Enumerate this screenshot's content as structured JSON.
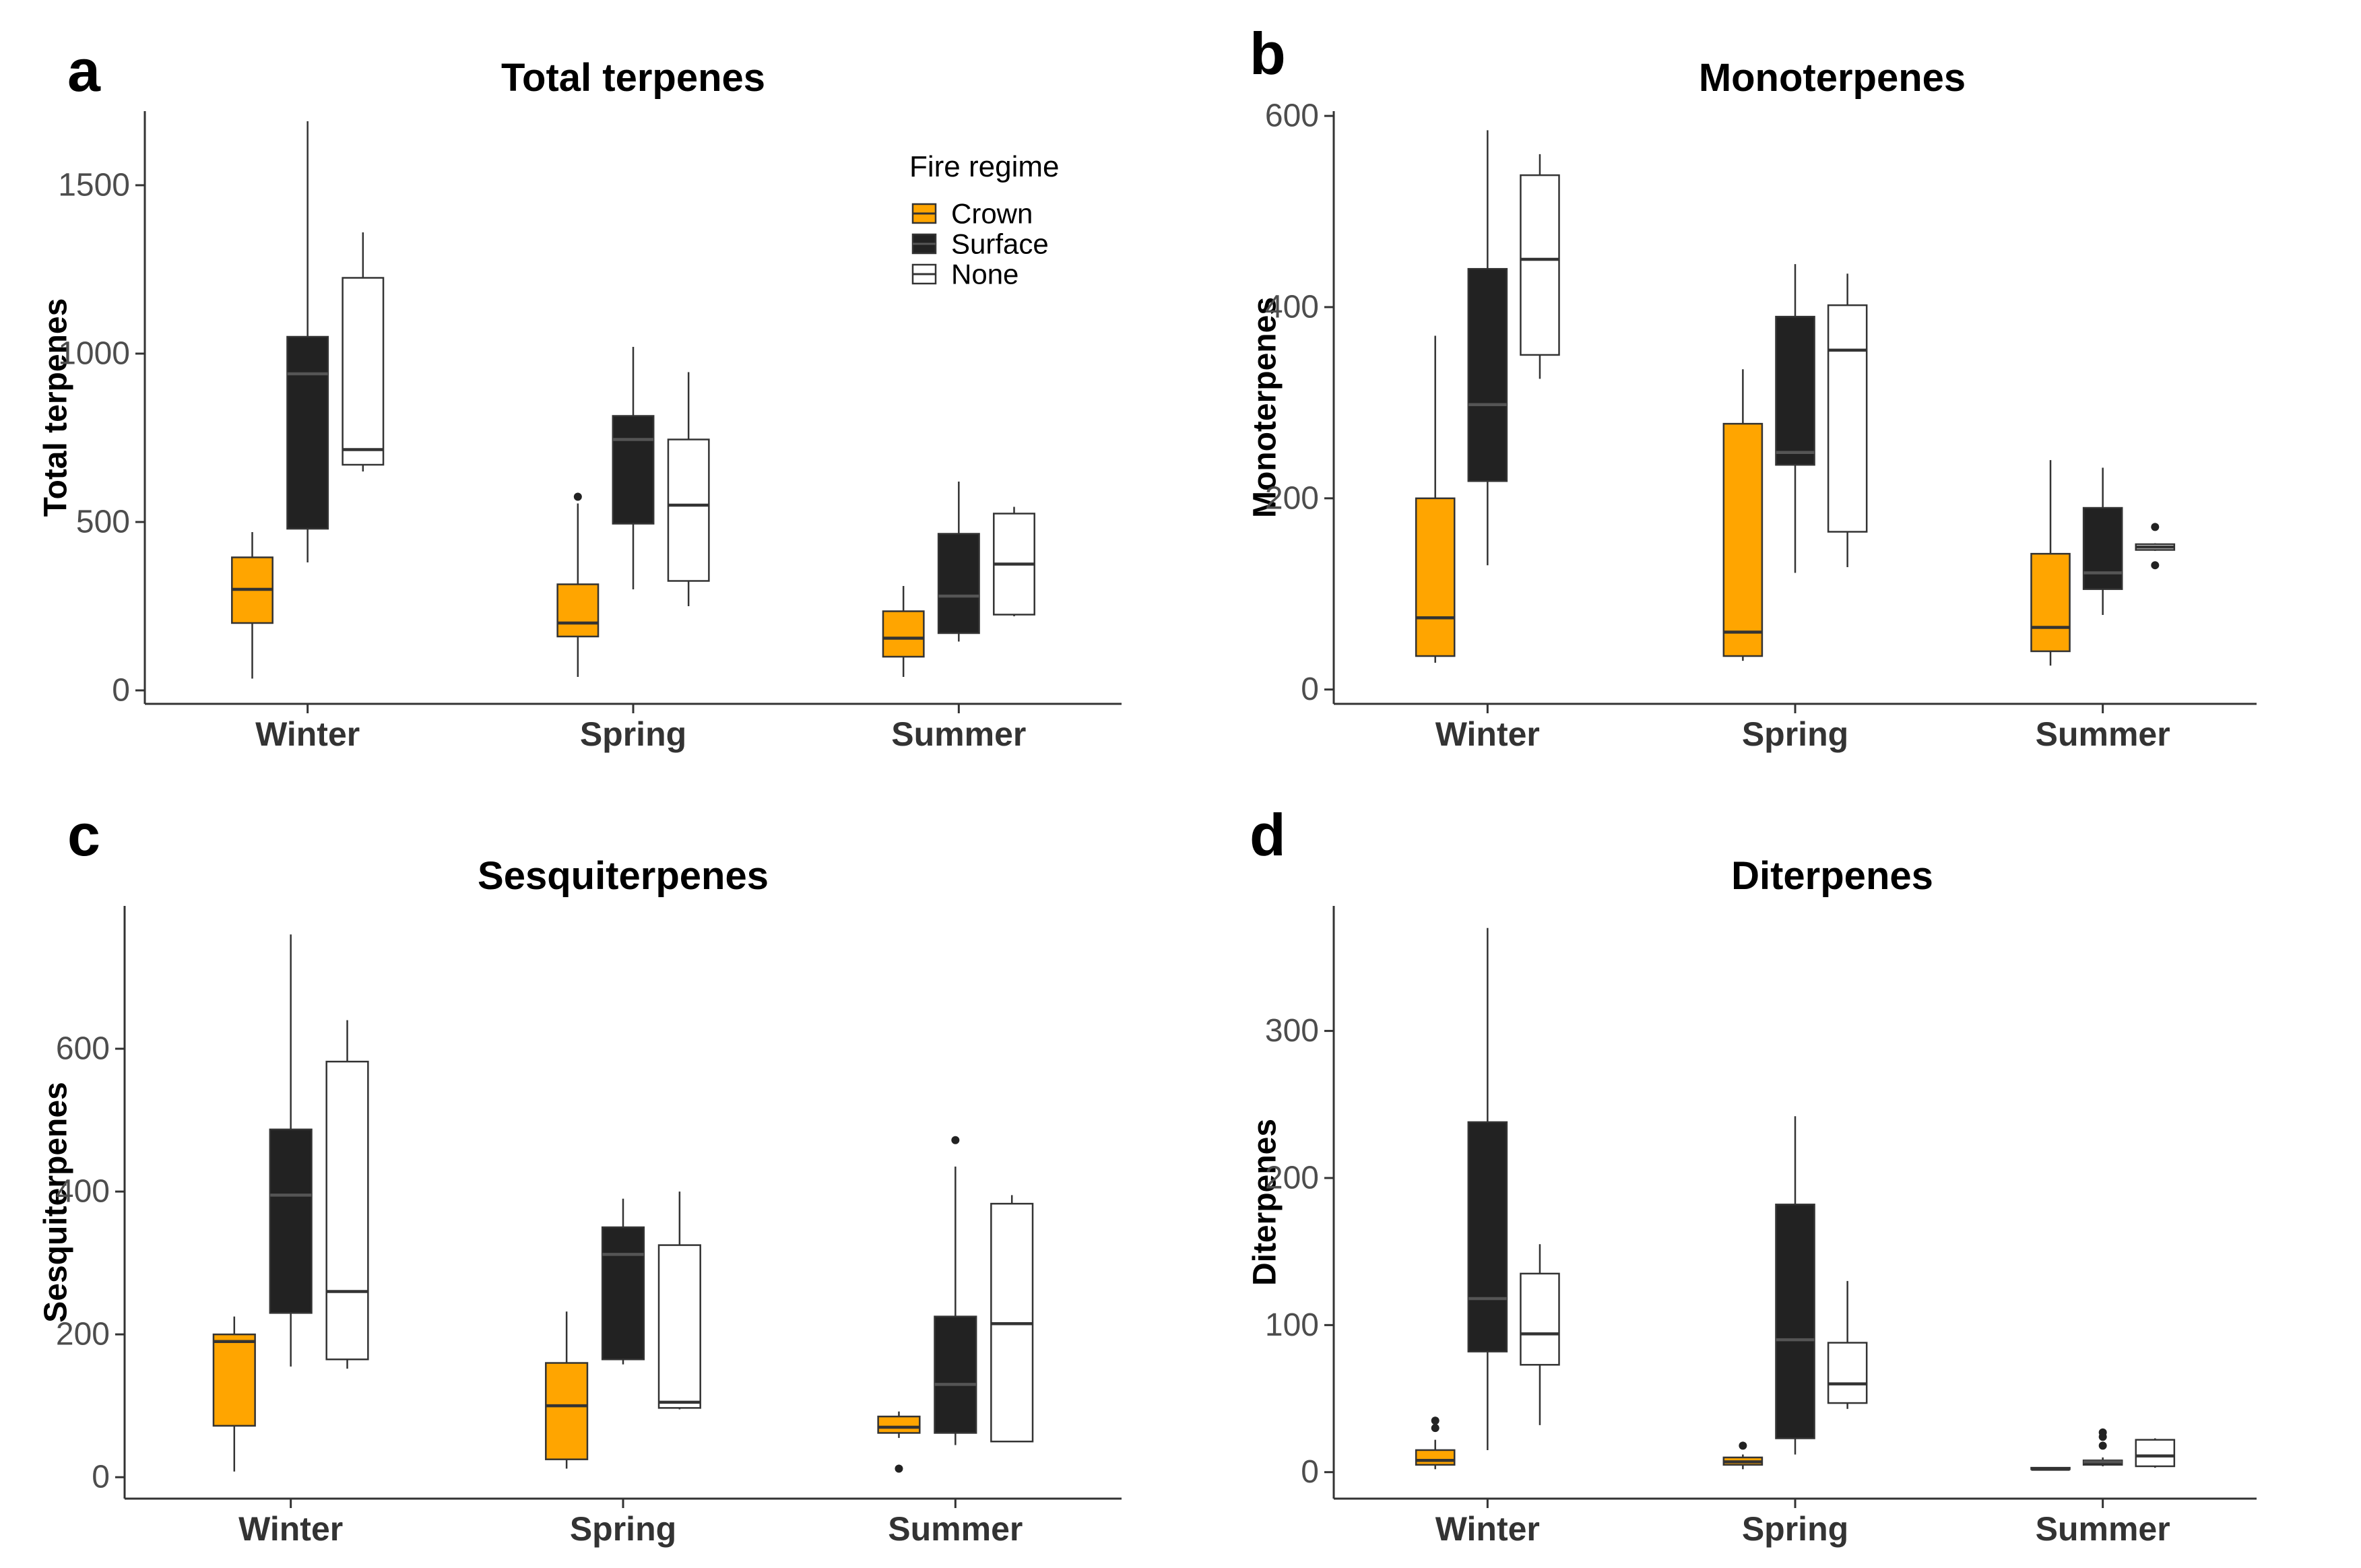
{
  "legend": {
    "title": "Fire regime",
    "entries": [
      {
        "name": "Crown",
        "color": "#FFA500"
      },
      {
        "name": "Surface",
        "color": "#222222"
      },
      {
        "name": "None",
        "color": "#FFFFFF"
      }
    ]
  },
  "chart_data": [
    {
      "type": "boxplot",
      "letter": "a",
      "title": "Total terpenes",
      "ylabel": "Total terpenes",
      "categories": [
        "Winter",
        "Spring",
        "Summer"
      ],
      "ylim": [
        -40,
        1720
      ],
      "yticks": [
        0,
        500,
        1000,
        1500
      ],
      "series": [
        {
          "name": "Crown",
          "boxes": [
            {
              "min": 35,
              "q1": 200,
              "median": 300,
              "q3": 395,
              "max": 470,
              "outliers": []
            },
            {
              "min": 40,
              "q1": 160,
              "median": 200,
              "q3": 315,
              "max": 555,
              "outliers": [
                575
              ]
            },
            {
              "min": 40,
              "q1": 100,
              "median": 155,
              "q3": 235,
              "max": 310,
              "outliers": []
            }
          ]
        },
        {
          "name": "Surface",
          "boxes": [
            {
              "min": 380,
              "q1": 480,
              "median": 940,
              "q3": 1050,
              "max": 1690,
              "outliers": []
            },
            {
              "min": 300,
              "q1": 495,
              "median": 745,
              "q3": 815,
              "max": 1020,
              "outliers": []
            },
            {
              "min": 145,
              "q1": 170,
              "median": 280,
              "q3": 465,
              "max": 620,
              "outliers": []
            }
          ]
        },
        {
          "name": "None",
          "boxes": [
            {
              "min": 650,
              "q1": 670,
              "median": 715,
              "q3": 1225,
              "max": 1360,
              "outliers": []
            },
            {
              "min": 250,
              "q1": 325,
              "median": 550,
              "q3": 745,
              "max": 945,
              "outliers": []
            },
            {
              "min": 220,
              "q1": 225,
              "median": 375,
              "q3": 525,
              "max": 545,
              "outliers": []
            }
          ]
        }
      ]
    },
    {
      "type": "boxplot",
      "letter": "b",
      "title": "Monoterpenes",
      "ylabel": "Monoterpenes",
      "categories": [
        "Winter",
        "Spring",
        "Summer"
      ],
      "ylim": [
        -15,
        605
      ],
      "yticks": [
        0,
        200,
        400,
        600
      ],
      "series": [
        {
          "name": "Crown",
          "boxes": [
            {
              "min": 28,
              "q1": 35,
              "median": 75,
              "q3": 200,
              "max": 370,
              "outliers": []
            },
            {
              "min": 30,
              "q1": 35,
              "median": 60,
              "q3": 278,
              "max": 335,
              "outliers": []
            },
            {
              "min": 25,
              "q1": 40,
              "median": 65,
              "q3": 142,
              "max": 240,
              "outliers": []
            }
          ]
        },
        {
          "name": "Surface",
          "boxes": [
            {
              "min": 130,
              "q1": 218,
              "median": 298,
              "q3": 440,
              "max": 585,
              "outliers": []
            },
            {
              "min": 122,
              "q1": 235,
              "median": 248,
              "q3": 390,
              "max": 445,
              "outliers": []
            },
            {
              "min": 78,
              "q1": 105,
              "median": 122,
              "q3": 190,
              "max": 232,
              "outliers": []
            }
          ]
        },
        {
          "name": "None",
          "boxes": [
            {
              "min": 325,
              "q1": 350,
              "median": 450,
              "q3": 538,
              "max": 560,
              "outliers": []
            },
            {
              "min": 128,
              "q1": 165,
              "median": 355,
              "q3": 402,
              "max": 435,
              "outliers": []
            },
            {
              "min": 145,
              "q1": 146,
              "median": 149,
              "q3": 152,
              "max": 153,
              "outliers": [
                130,
                170
              ]
            }
          ]
        }
      ]
    },
    {
      "type": "boxplot",
      "letter": "c",
      "title": "Sesquiterpenes",
      "ylabel": "Sesquiterpenes",
      "categories": [
        "Winter",
        "Spring",
        "Summer"
      ],
      "ylim": [
        -30,
        800
      ],
      "yticks": [
        0,
        200,
        400,
        600
      ],
      "series": [
        {
          "name": "Crown",
          "boxes": [
            {
              "min": 8,
              "q1": 72,
              "median": 190,
              "q3": 200,
              "max": 225,
              "outliers": []
            },
            {
              "min": 12,
              "q1": 25,
              "median": 100,
              "q3": 160,
              "max": 232,
              "outliers": []
            },
            {
              "min": 55,
              "q1": 62,
              "median": 70,
              "q3": 85,
              "max": 92,
              "outliers": [
                12
              ]
            }
          ]
        },
        {
          "name": "Surface",
          "boxes": [
            {
              "min": 155,
              "q1": 230,
              "median": 395,
              "q3": 487,
              "max": 760,
              "outliers": []
            },
            {
              "min": 158,
              "q1": 165,
              "median": 312,
              "q3": 350,
              "max": 390,
              "outliers": []
            },
            {
              "min": 45,
              "q1": 62,
              "median": 130,
              "q3": 225,
              "max": 435,
              "outliers": [
                472
              ]
            }
          ]
        },
        {
          "name": "None",
          "boxes": [
            {
              "min": 152,
              "q1": 165,
              "median": 260,
              "q3": 582,
              "max": 640,
              "outliers": []
            },
            {
              "min": 95,
              "q1": 97,
              "median": 105,
              "q3": 325,
              "max": 400,
              "outliers": []
            },
            {
              "min": 50,
              "q1": 50,
              "median": 215,
              "q3": 383,
              "max": 395,
              "outliers": []
            }
          ]
        }
      ]
    },
    {
      "type": "boxplot",
      "letter": "d",
      "title": "Diterpenes",
      "ylabel": "Diterpenes",
      "categories": [
        "Winter",
        "Spring",
        "Summer"
      ],
      "ylim": [
        -18,
        385
      ],
      "yticks": [
        0,
        100,
        200,
        300
      ],
      "series": [
        {
          "name": "Crown",
          "boxes": [
            {
              "min": 2,
              "q1": 5,
              "median": 8,
              "q3": 15,
              "max": 22,
              "outliers": [
                30,
                35
              ]
            },
            {
              "min": 2,
              "q1": 5,
              "median": 7,
              "q3": 10,
              "max": 12,
              "outliers": [
                18
              ]
            },
            {
              "min": 1,
              "q1": 2,
              "median": 2,
              "q3": 3,
              "max": 3,
              "outliers": []
            }
          ]
        },
        {
          "name": "Surface",
          "boxes": [
            {
              "min": 15,
              "q1": 82,
              "median": 118,
              "q3": 238,
              "max": 370,
              "outliers": []
            },
            {
              "min": 12,
              "q1": 23,
              "median": 90,
              "q3": 182,
              "max": 242,
              "outliers": []
            },
            {
              "min": 4,
              "q1": 5,
              "median": 7,
              "q3": 8,
              "max": 10,
              "outliers": [
                18,
                24,
                27
              ]
            }
          ]
        },
        {
          "name": "None",
          "boxes": [
            {
              "min": 32,
              "q1": 73,
              "median": 94,
              "q3": 135,
              "max": 155,
              "outliers": []
            },
            {
              "min": 43,
              "q1": 47,
              "median": 60,
              "q3": 88,
              "max": 130,
              "outliers": []
            },
            {
              "min": 3,
              "q1": 4,
              "median": 11,
              "q3": 22,
              "max": 23,
              "outliers": []
            }
          ]
        }
      ]
    }
  ]
}
